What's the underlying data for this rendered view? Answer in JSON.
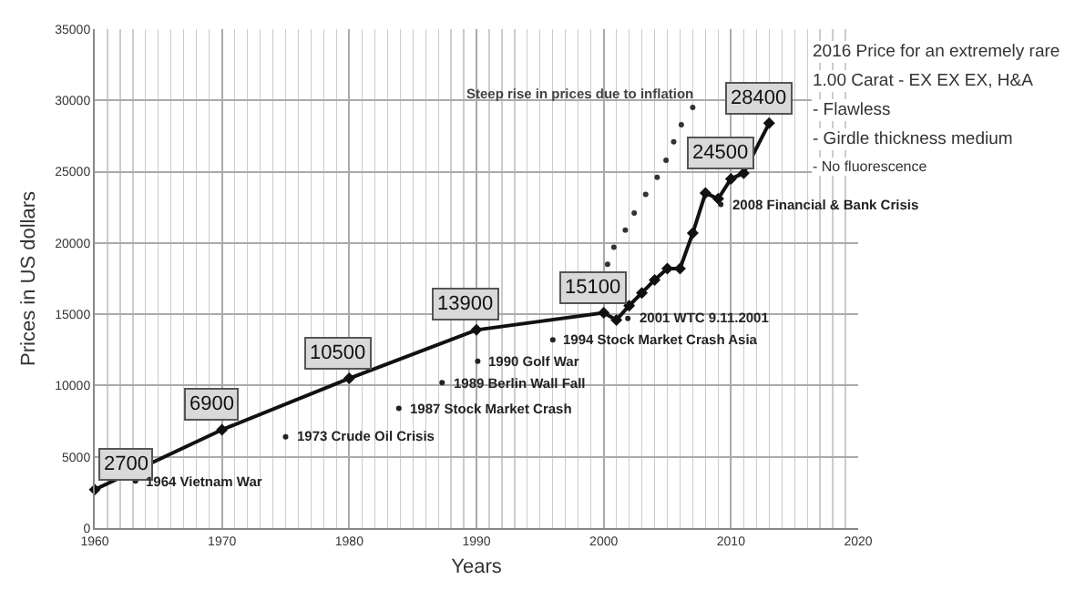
{
  "chart_data": {
    "type": "line",
    "xlabel": "Years",
    "ylabel": "Prices in US dollars",
    "xlim": [
      1960,
      2020
    ],
    "xticks": [
      1960,
      1970,
      1980,
      1990,
      2000,
      2010,
      2020
    ],
    "ylim": [
      0,
      35000
    ],
    "yticks": [
      0,
      5000,
      10000,
      15000,
      20000,
      25000,
      30000,
      35000
    ],
    "grid": true,
    "series": [
      {
        "color": "#111111",
        "marker": "diamond",
        "line_style": "solid",
        "x": [
          1960,
          1970,
          1980,
          1990,
          2000,
          2001,
          2002,
          2003,
          2004,
          2005,
          2006,
          2007,
          2008,
          2009,
          2010,
          2011,
          2013
        ],
        "values": [
          2700,
          6900,
          10500,
          13900,
          15100,
          14600,
          15600,
          16500,
          17400,
          18200,
          18200,
          20700,
          23500,
          23100,
          24500,
          24900,
          28400
        ],
        "value_labels": [
          "2700",
          "6900",
          "10500",
          "13900",
          "15100",
          null,
          null,
          null,
          null,
          null,
          null,
          null,
          null,
          null,
          "24500",
          null,
          "28400"
        ]
      },
      {
        "type": "scatter",
        "color": "#333333",
        "marker": "circle",
        "x": [
          2000.3,
          2000.8,
          2001.7,
          2002.4,
          2003.3,
          2004.2,
          2004.9,
          2005.5,
          2006.1,
          2007.0
        ],
        "values": [
          18500,
          19700,
          20900,
          22100,
          23400,
          24600,
          25800,
          27100,
          28300,
          29500
        ]
      }
    ],
    "annotations": [
      "Steep rise in prices due to inflation",
      {
        "text": "1964 Vietnam War",
        "x": 1963.2,
        "y": 3300
      },
      {
        "text": "1973 Crude Oil Crisis",
        "x": 1975,
        "y": 6400
      },
      {
        "text": "1987 Stock Market Crash",
        "x": 1983.9,
        "y": 8400
      },
      {
        "text": "1989 Berlin Wall Fall",
        "x": 1987.3,
        "y": 10200
      },
      {
        "text": "1990 Golf War",
        "x": 1990.1,
        "y": 11700
      },
      {
        "text": "1994 Stock Market Crash Asia",
        "x": 1996,
        "y": 13200
      },
      {
        "text": "2001 WTC 9.11.2001",
        "x": 2001.9,
        "y": 14700
      },
      {
        "text": "2008 Financial & Bank Crisis",
        "x": 2009.2,
        "y": 22700
      },
      "2016 Price for an extremely rare",
      "1.00 Carat - EX EX EX, H&A",
      "- Flawless",
      "- Girdle thickness medium",
      "- No fluorescence"
    ]
  }
}
